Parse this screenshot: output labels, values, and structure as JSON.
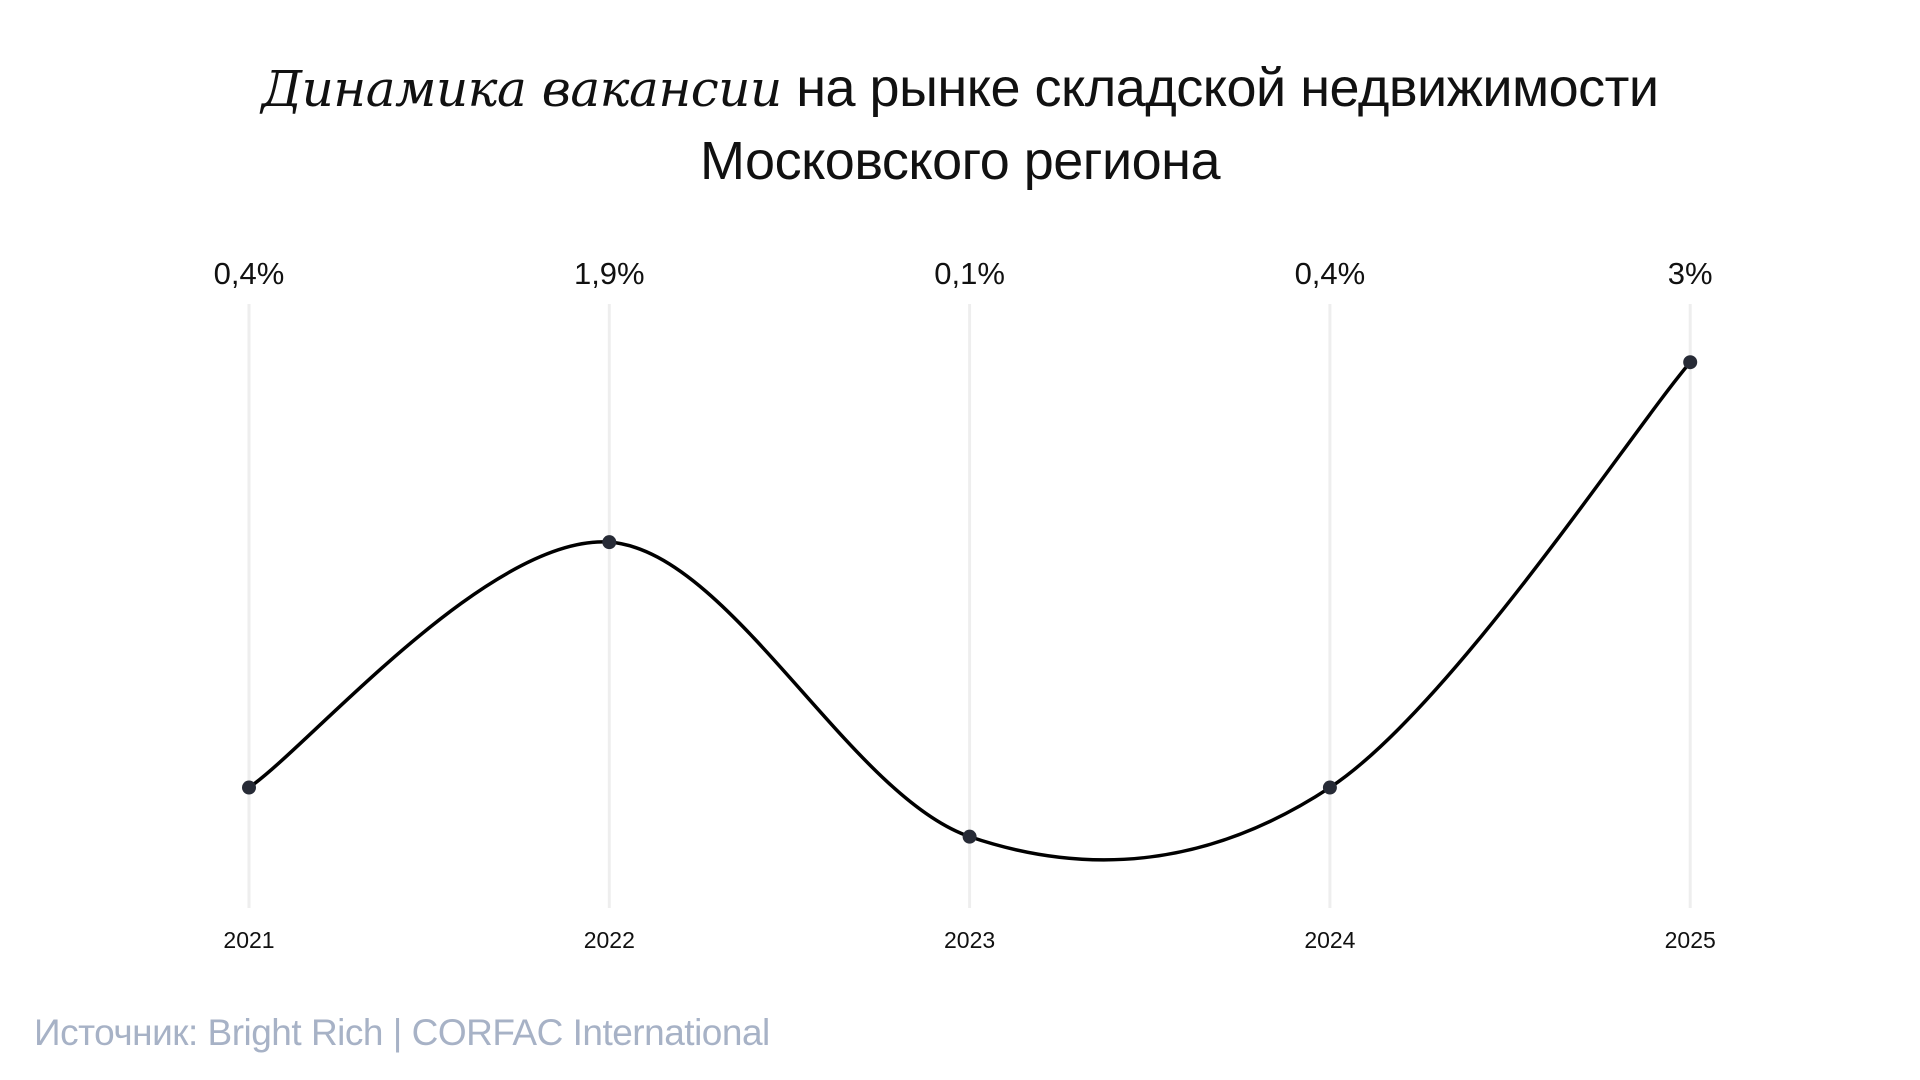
{
  "title": {
    "italic_part": "Динамика вакансии",
    "rest_line1": "на рынке складской недвижимости",
    "line2": "Московского региона"
  },
  "source": "Источник: Bright Rich | CORFAC International",
  "chart_data": {
    "type": "line",
    "title": "Динамика вакансии на рынке складской недвижимости Московского региона",
    "categories": [
      "2021",
      "2022",
      "2023",
      "2024",
      "2025"
    ],
    "values": [
      0.4,
      1.9,
      0.1,
      0.4,
      3
    ],
    "value_labels": [
      "0,4%",
      "1,9%",
      "0,1%",
      "0,4%",
      "3%"
    ],
    "xlabel": "",
    "ylabel": "",
    "ylim": [
      0,
      3.3
    ],
    "smooth": true,
    "grid": "vertical",
    "colors": {
      "line": "#000000",
      "point": "#272b36",
      "grid": "#eeeeee",
      "source": "#a7b2c6"
    }
  }
}
